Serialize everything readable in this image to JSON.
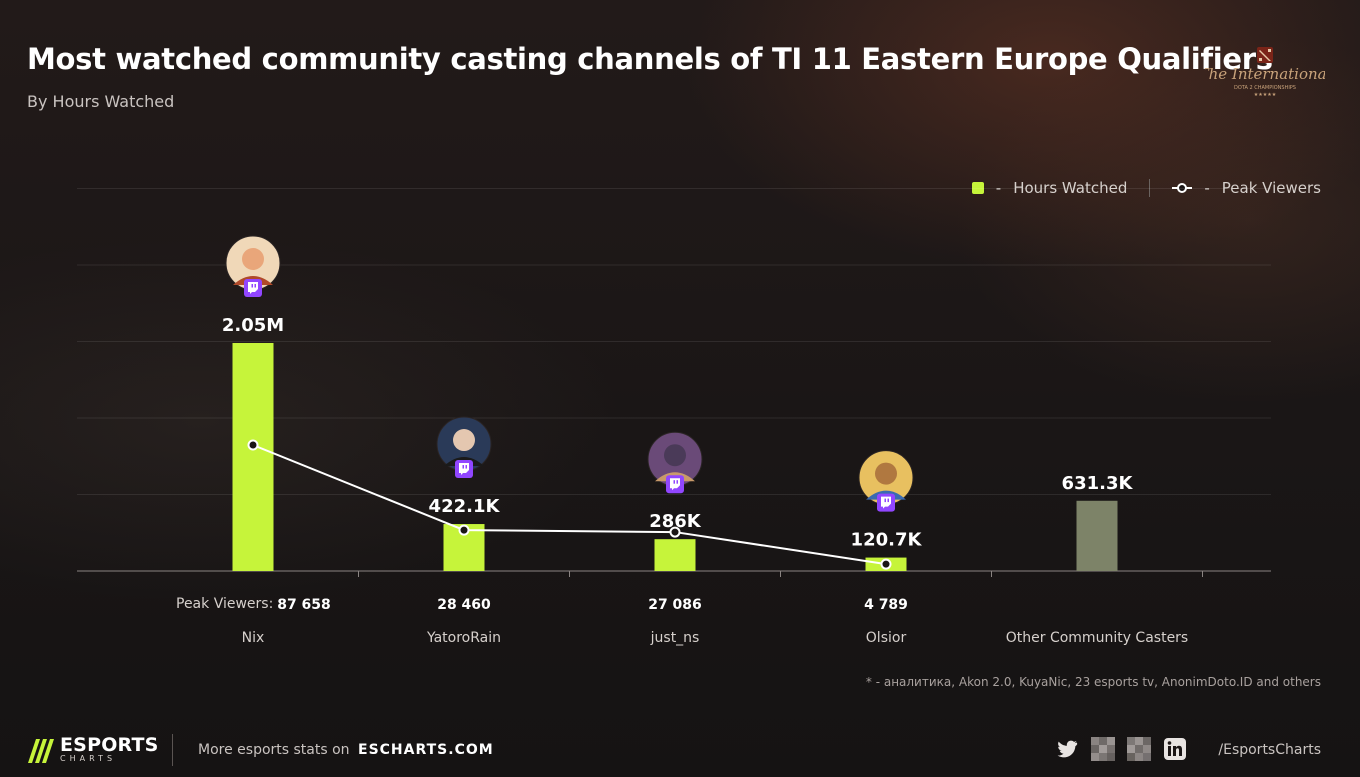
{
  "header": {
    "title": "Most watched community casting channels of TI 11 Eastern Europe Qualifiers",
    "subtitle": "By Hours Watched"
  },
  "legend": {
    "hours_label": "Hours Watched",
    "peak_label": "Peak Viewers",
    "dash": "-"
  },
  "peak_caption": "Peak Viewers:",
  "chart_data": {
    "type": "bar",
    "categories": [
      "Nix",
      "YatoroRain",
      "just_ns",
      "Olsior",
      "Other Community Casters"
    ],
    "series": [
      {
        "name": "Hours Watched",
        "values": [
          2050000,
          422100,
          286000,
          120700,
          631300
        ],
        "value_labels": [
          "2.05M",
          "422.1K",
          "286K",
          "120.7K",
          "631.3K"
        ],
        "color": "#c6f43a"
      },
      {
        "name": "Peak Viewers",
        "type": "line",
        "values": [
          87658,
          28460,
          27086,
          4789,
          null
        ],
        "value_labels": [
          "87 658",
          "28 460",
          "27 086",
          "4 789",
          ""
        ],
        "color": "#ffffff"
      }
    ],
    "other_bar_color": "#7d8368",
    "ylim": [
      0,
      2500000
    ],
    "grid": true,
    "legend_position": "top-right",
    "avatars": [
      "redhead-avatar",
      "person-avatar",
      "hamster-avatar",
      "ukraine-avatar",
      ""
    ],
    "platform_badge": "twitch-icon"
  },
  "footnote": "* - аналитика, Akon 2.0, KuyaNic, 23 esports tv, AnonimDoto.ID and others",
  "footer": {
    "brand": "ESPORTS",
    "brand_sub": "CHARTS",
    "more_text": "More esports stats on",
    "site": "ESCHARTS.COM",
    "handle": "/EsportsCharts",
    "social_icons": [
      "twitter-icon",
      "pixelated-icon",
      "pixelated-icon",
      "linkedin-icon"
    ]
  },
  "colors": {
    "accent": "#c6f43a",
    "background": "#1b1616",
    "other_bar": "#7d8368",
    "twitch": "#9146ff"
  }
}
